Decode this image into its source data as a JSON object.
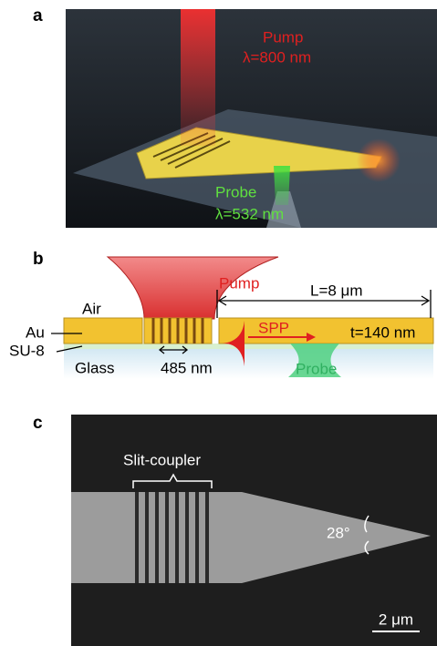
{
  "panels": [
    {
      "label": "a",
      "pump": "Pump",
      "pump_wavelength": "λ=800 nm",
      "probe": "Probe",
      "probe_wavelength": "λ=532 nm"
    },
    {
      "label": "b",
      "pump": "Pump",
      "length": "L=8 μm",
      "air": "Air",
      "au": "Au",
      "su8": "SU-8",
      "glass": "Glass",
      "period": "485 nm",
      "spp": "SPP",
      "thickness": "t=140 nm",
      "probe": "Probe"
    },
    {
      "label": "c",
      "coupler": "Slit-coupler",
      "angle": "28°",
      "scale": "2 μm"
    }
  ]
}
